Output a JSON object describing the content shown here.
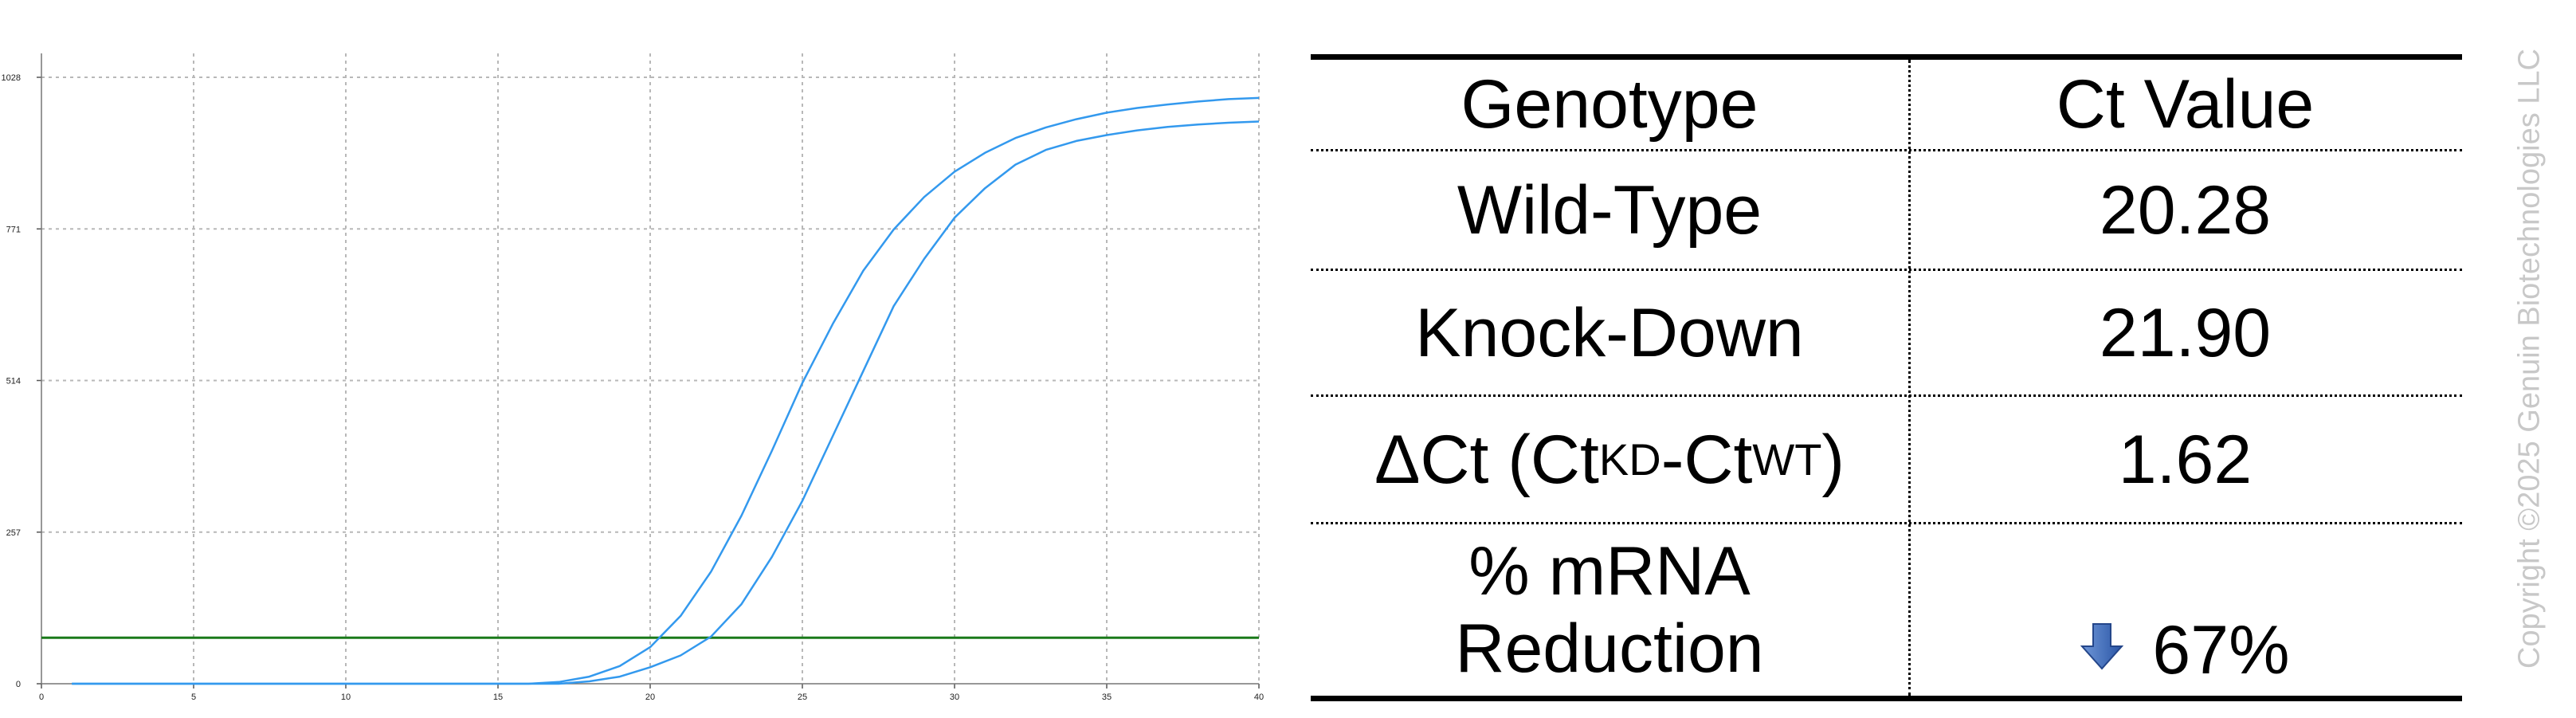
{
  "chart_data": {
    "type": "line",
    "x_ticks": [
      "0",
      "5",
      "10",
      "15",
      "20",
      "25",
      "30",
      "35",
      "40"
    ],
    "y_ticks": [
      "0",
      "257",
      "514",
      "771",
      "1028"
    ],
    "xlim": [
      0,
      40
    ],
    "ylim": [
      0,
      1028
    ],
    "grid": true,
    "series": [
      {
        "color": "#3399ee",
        "points": [
          [
            1,
            0
          ],
          [
            16,
            0
          ],
          [
            17,
            3
          ],
          [
            18,
            12
          ],
          [
            19,
            30
          ],
          [
            20,
            62
          ],
          [
            21,
            115
          ],
          [
            22,
            190
          ],
          [
            23,
            285
          ],
          [
            24,
            395
          ],
          [
            25,
            510
          ],
          [
            26,
            610
          ],
          [
            27,
            700
          ],
          [
            28,
            770
          ],
          [
            29,
            825
          ],
          [
            30,
            868
          ],
          [
            31,
            900
          ],
          [
            32,
            925
          ],
          [
            33,
            943
          ],
          [
            34,
            957
          ],
          [
            35,
            968
          ],
          [
            36,
            976
          ],
          [
            37,
            982
          ],
          [
            38,
            987
          ],
          [
            39,
            991
          ],
          [
            40,
            993
          ]
        ]
      },
      {
        "color": "#3399ee",
        "points": [
          [
            1,
            0
          ],
          [
            17,
            0
          ],
          [
            18,
            4
          ],
          [
            19,
            12
          ],
          [
            20,
            28
          ],
          [
            21,
            48
          ],
          [
            22,
            80
          ],
          [
            23,
            135
          ],
          [
            24,
            215
          ],
          [
            25,
            310
          ],
          [
            26,
            420
          ],
          [
            27,
            530
          ],
          [
            28,
            640
          ],
          [
            29,
            720
          ],
          [
            30,
            790
          ],
          [
            31,
            840
          ],
          [
            32,
            880
          ],
          [
            33,
            905
          ],
          [
            34,
            920
          ],
          [
            35,
            930
          ],
          [
            36,
            938
          ],
          [
            37,
            944
          ],
          [
            38,
            948
          ],
          [
            39,
            951
          ],
          [
            40,
            953
          ]
        ]
      }
    ],
    "threshold": {
      "y": 78,
      "color": "#1a7a1a"
    }
  },
  "table": {
    "header": {
      "genotype": "Genotype",
      "value": "Ct Value"
    },
    "rows": [
      {
        "genotype": "Wild-Type",
        "value": "20.28"
      },
      {
        "genotype": "Knock-Down",
        "value": "21.90"
      }
    ],
    "delta": {
      "prefix": "ΔCt (Ct",
      "sub1": "KD",
      "mid": "-Ct",
      "sub2": "WT",
      "suffix": ")",
      "value": "1.62"
    },
    "reduction": {
      "line1": "% mRNA",
      "line2": "Reduction",
      "value": "67%",
      "arrow_icon": "down-arrow-icon",
      "arrow_color": "#2f5fb3"
    }
  },
  "copyright": "Copyright ©2025 Genuin Biotechnologies LLC"
}
